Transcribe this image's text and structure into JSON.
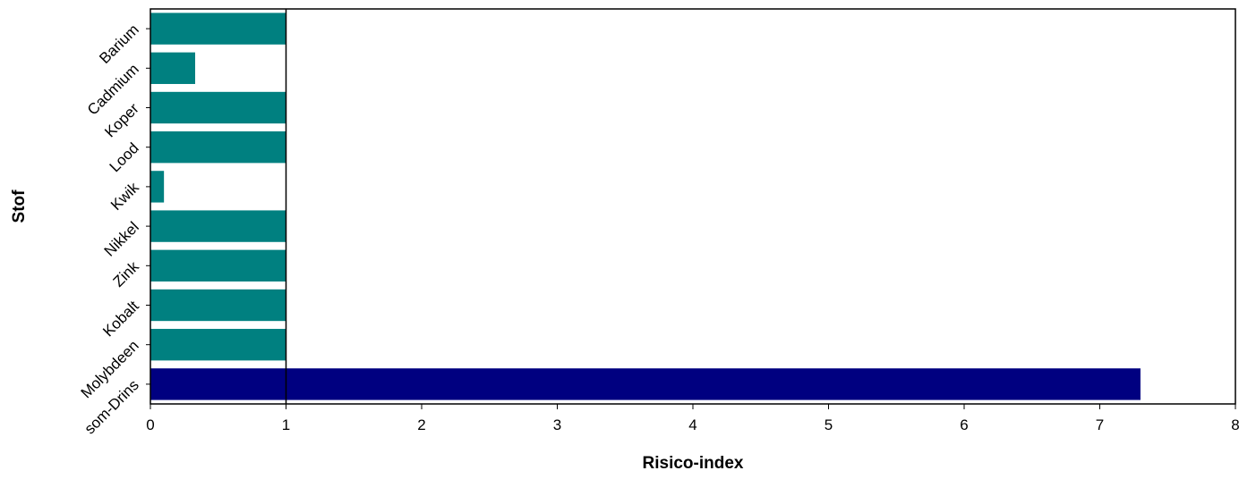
{
  "chart_data": {
    "type": "bar",
    "orientation": "horizontal",
    "xlabel": "Risico-index",
    "ylabel": "Stof",
    "xlim": [
      0,
      8
    ],
    "xticks": [
      "0",
      "1",
      "2",
      "3",
      "4",
      "5",
      "6",
      "7",
      "8"
    ],
    "reference_line_x": 1,
    "grid": false,
    "legend": "none",
    "categories": [
      "Barium",
      "Cadmium",
      "Koper",
      "Lood",
      "Kwik",
      "Nikkel",
      "Zink",
      "Kobalt",
      "Molybdeen",
      "som-Drins"
    ],
    "values": [
      1.0,
      0.33,
      1.0,
      1.0,
      0.1,
      1.0,
      1.0,
      1.0,
      1.0,
      7.3
    ],
    "bar_colors": [
      "#008080",
      "#008080",
      "#008080",
      "#008080",
      "#008080",
      "#008080",
      "#008080",
      "#008080",
      "#008080",
      "#000080"
    ]
  }
}
